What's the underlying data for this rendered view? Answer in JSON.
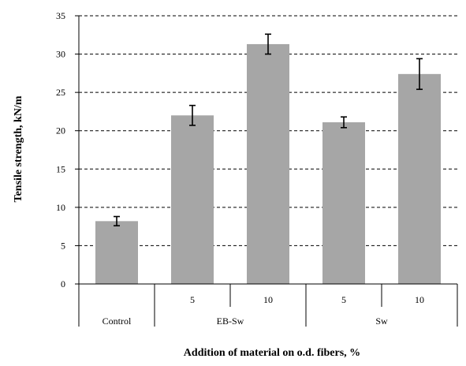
{
  "chart_data": {
    "type": "bar",
    "categories": [
      "",
      "5",
      "10",
      "5",
      "10"
    ],
    "groups": [
      {
        "label": "Control",
        "categories": [
          ""
        ]
      },
      {
        "label": "EB-Sw",
        "categories": [
          "5",
          "10"
        ]
      },
      {
        "label": "Sw",
        "categories": [
          "5",
          "10"
        ]
      }
    ],
    "values": [
      8.2,
      22.0,
      31.3,
      21.1,
      27.4
    ],
    "errors": [
      0.6,
      1.3,
      1.3,
      0.7,
      2.0
    ],
    "xlabel": "Addition of material on o.d. fibers, %",
    "ylabel": "Tensile strength, kN/m",
    "ylim": [
      0,
      35
    ],
    "yticks": [
      0,
      5,
      10,
      15,
      20,
      25,
      30,
      35
    ],
    "grid": "horizontal dashed",
    "bar_color": "#a6a6a6",
    "grid_color": "#000000"
  }
}
